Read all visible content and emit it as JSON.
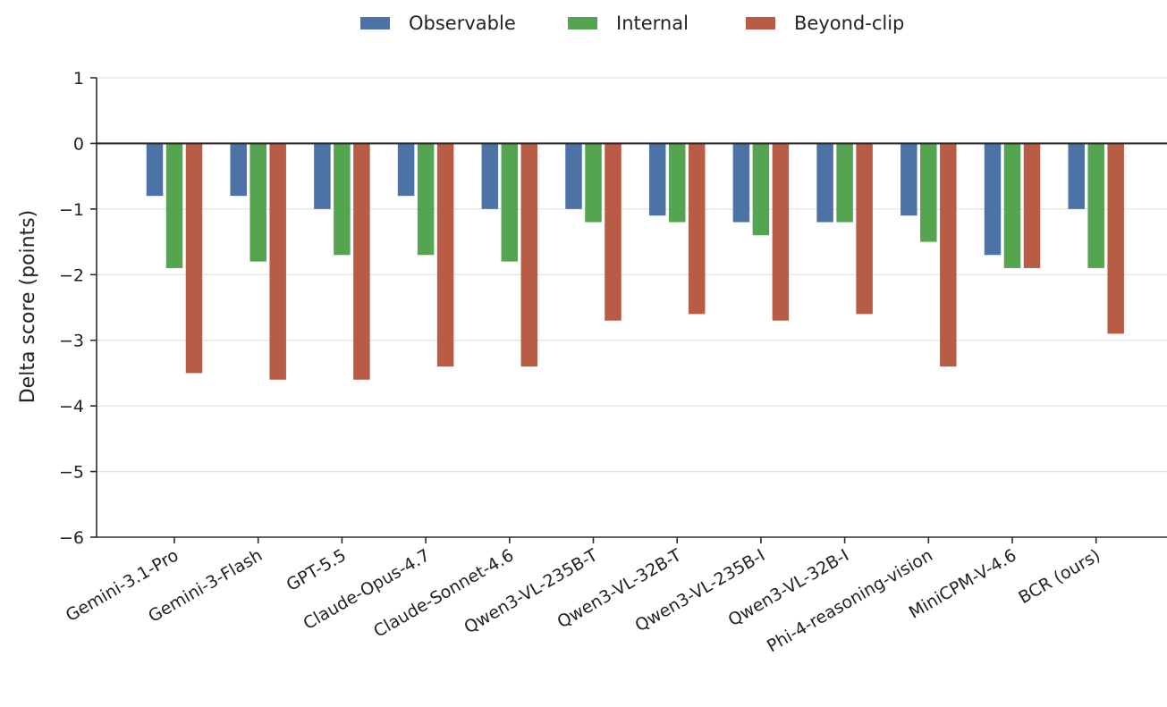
{
  "chart_data": {
    "type": "bar",
    "title": "",
    "xlabel": "",
    "ylabel": "Delta score (points)",
    "ylim": [
      -6,
      1
    ],
    "yticks": [
      1,
      0,
      -1,
      -2,
      -3,
      -4,
      -5,
      -6
    ],
    "ytick_labels": [
      "1",
      "0",
      "−1",
      "−2",
      "−3",
      "−4",
      "−5",
      "−6"
    ],
    "grid": "horizontal",
    "legend_position": "top-center",
    "categories": [
      "Gemini-3.1-Pro",
      "Gemini-3-Flash",
      "GPT-5.5",
      "Claude-Opus-4.7",
      "Claude-Sonnet-4.6",
      "Qwen3-VL-235B-T",
      "Qwen3-VL-32B-T",
      "Qwen3-VL-235B-I",
      "Qwen3-VL-32B-I",
      "Phi-4-reasoning-vision",
      "MiniCPM-V-4.6",
      "BCR (ours)"
    ],
    "series": [
      {
        "name": "Observable",
        "color": "#4c72a6",
        "values": [
          -0.8,
          -0.8,
          -1.0,
          -0.8,
          -1.0,
          -1.0,
          -1.1,
          -1.2,
          -1.2,
          -1.1,
          -1.7,
          -1.0
        ]
      },
      {
        "name": "Internal",
        "color": "#55a44f",
        "values": [
          -1.9,
          -1.8,
          -1.7,
          -1.7,
          -1.8,
          -1.2,
          -1.2,
          -1.4,
          -1.2,
          -1.5,
          -1.9,
          -1.9
        ]
      },
      {
        "name": "Beyond-clip",
        "color": "#b85c45",
        "values": [
          -3.5,
          -3.6,
          -3.6,
          -3.4,
          -3.4,
          -2.7,
          -2.6,
          -2.7,
          -2.6,
          -3.4,
          -1.9,
          -2.9
        ]
      }
    ]
  }
}
